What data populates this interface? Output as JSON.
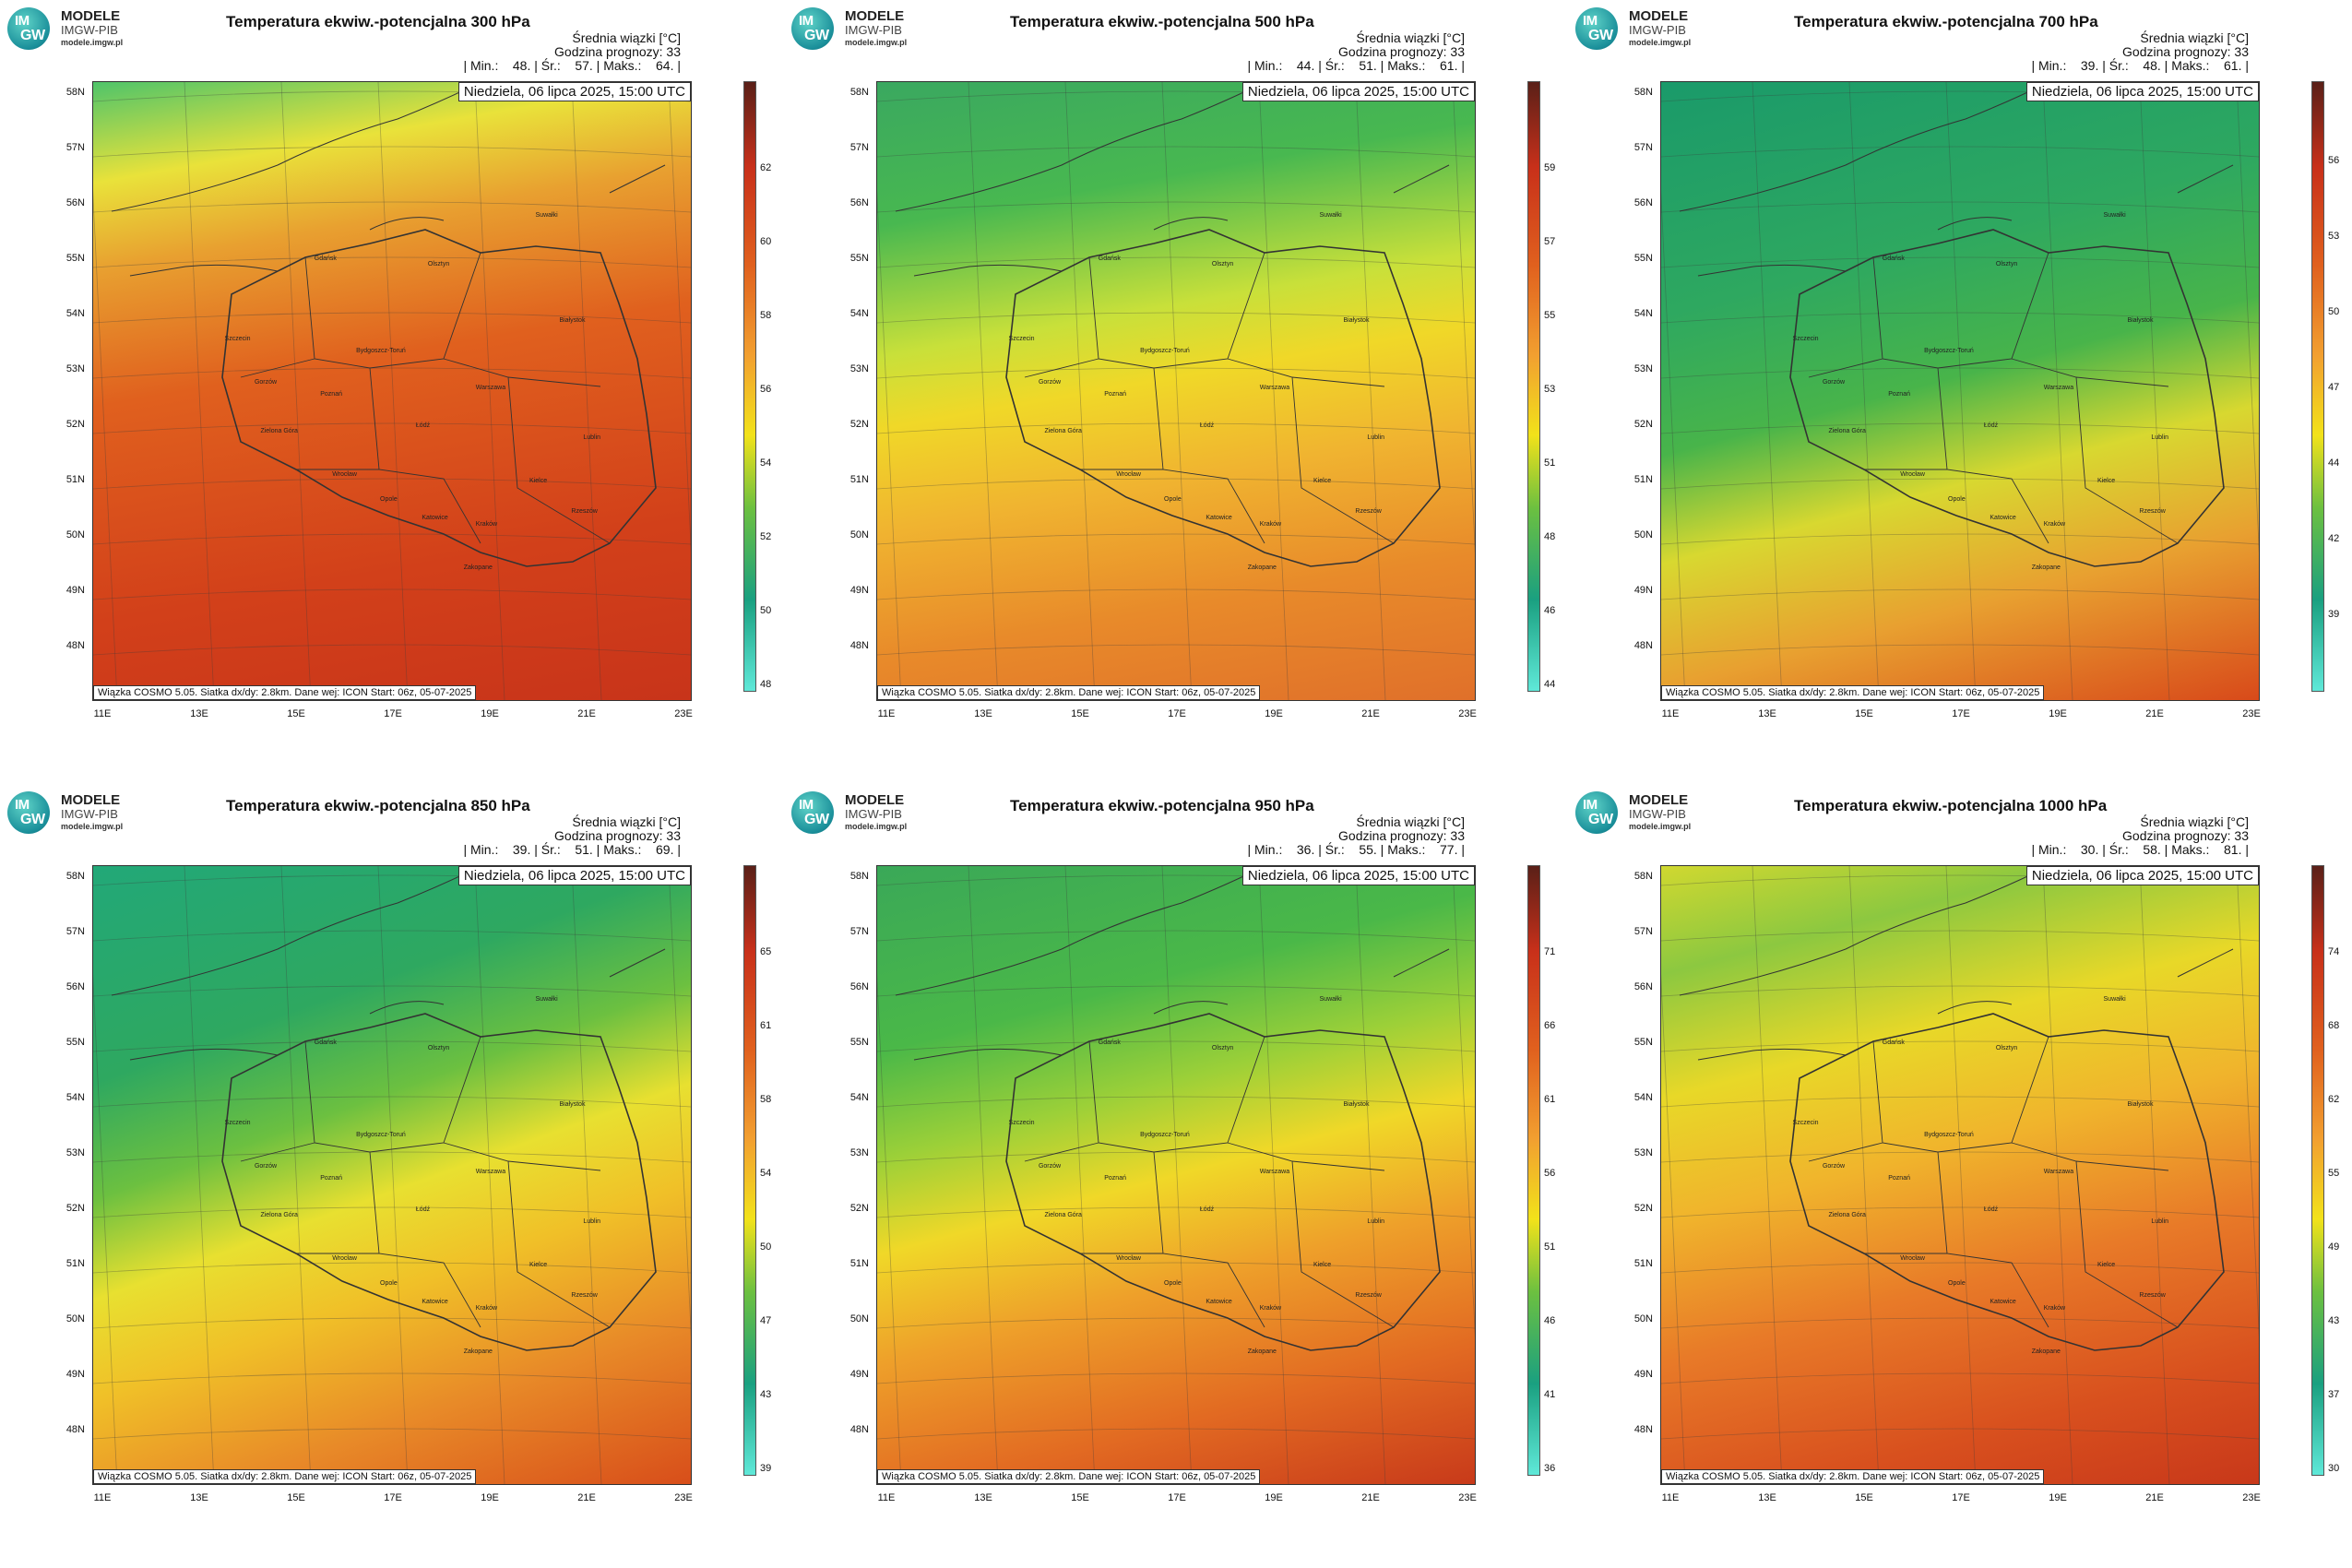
{
  "logo": {
    "badge1": "IM",
    "badge2": "GW",
    "line1": "MODELE",
    "line2": "IMGW-PIB",
    "line3": "modele.imgw.pl"
  },
  "common": {
    "stats_header": "Średnia wiązki [°C]",
    "forecast_hour": "Godzina prognozy: 33",
    "date": "Niedziela, 06 lipca 2025, 15:00 UTC",
    "credit": "Wiązka COSMO 5.05. Siatka dx/dy: 2.8km. Dane wej: ICON Start: 06z, 05-07-2025",
    "lat_labels": [
      "58N",
      "57N",
      "56N",
      "55N",
      "54N",
      "53N",
      "52N",
      "51N",
      "50N",
      "49N",
      "48N"
    ],
    "lon_labels": [
      "11E",
      "13E",
      "15E",
      "17E",
      "19E",
      "21E",
      "23E"
    ],
    "cities": [
      "Gdańsk",
      "Olsztyn",
      "Suwałki",
      "Szczecin",
      "Bydgoszcz-Toruń",
      "Białystok",
      "Gorzów",
      "Poznań",
      "Warszawa",
      "Zielona Góra",
      "Łódź",
      "Lublin",
      "Wrocław",
      "Opole",
      "Kielce",
      "Katowice",
      "Kraków",
      "Rzeszów",
      "Zakopane"
    ]
  },
  "panels": [
    {
      "title": "Temperatura ekwiw.-potencjalna 300 hPa",
      "stats": "| Min.:    48. | Śr.:    57. | Maks.:    64. |",
      "colorbar": [
        "62",
        "60",
        "58",
        "56",
        "54",
        "52",
        "50",
        "48"
      ],
      "scheme": "orange"
    },
    {
      "title": "Temperatura ekwiw.-potencjalna 500 hPa",
      "stats": "| Min.:    44. | Śr.:    51. | Maks.:    61. |",
      "colorbar": [
        "59",
        "57",
        "55",
        "53",
        "51",
        "48",
        "46",
        "44"
      ],
      "scheme": "mixed"
    },
    {
      "title": "Temperatura ekwiw.-potencjalna 700 hPa",
      "stats": "| Min.:    39. | Śr.:    48. | Maks.:    61. |",
      "colorbar": [
        "56",
        "53",
        "50",
        "47",
        "44",
        "42",
        "39"
      ],
      "scheme": "green"
    },
    {
      "title": "Temperatura ekwiw.-potencjalna 850 hPa",
      "stats": "| Min.:    39. | Śr.:    51. | Maks.:    69. |",
      "colorbar": [
        "65",
        "61",
        "58",
        "54",
        "50",
        "47",
        "43",
        "39"
      ],
      "scheme": "greenyellow"
    },
    {
      "title": "Temperatura ekwiw.-potencjalna 950 hPa",
      "stats": "| Min.:    36. | Śr.:    55. | Maks.:    77. |",
      "colorbar": [
        "71",
        "66",
        "61",
        "56",
        "51",
        "46",
        "41",
        "36"
      ],
      "scheme": "greenorange"
    },
    {
      "title": "Temperatura ekwiw.-potencjalna 1000 hPa",
      "stats": "| Min.:    30. | Śr.:    58. | Maks.:    81. |",
      "colorbar": [
        "74",
        "68",
        "62",
        "55",
        "49",
        "43",
        "37",
        "30"
      ],
      "scheme": "yelloworange"
    }
  ],
  "colors": {
    "red": "#c8301a",
    "orange": "#e8782a",
    "yellow": "#f2e21a",
    "green": "#3cb44a",
    "teal": "#1aa080",
    "cyan": "#5fe8d8",
    "dark": "#5a2018"
  }
}
